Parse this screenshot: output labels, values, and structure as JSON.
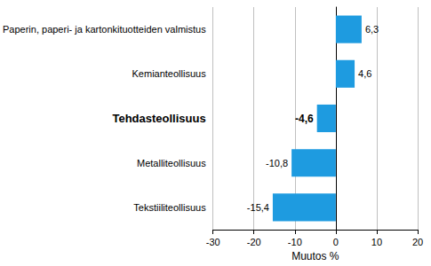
{
  "chart_data": {
    "type": "bar",
    "orientation": "horizontal",
    "categories": [
      "Paperin, paperi- ja kartonkituotteiden valmistus",
      "Kemianteollisuus",
      "Tehdasteollisuus",
      "Metalliteollisuus",
      "Tekstiiliteollisuus"
    ],
    "values": [
      6.3,
      4.6,
      -4.6,
      -10.8,
      -15.4
    ],
    "value_labels": [
      "6,3",
      "4,6",
      "-4,6",
      "-10,8",
      "-15,4"
    ],
    "data_labels": true,
    "color": "#1e9be0",
    "xlabel": "Muutos %",
    "xlim": [
      -30,
      20
    ],
    "xticks": [
      -30,
      -20,
      -10,
      0,
      10,
      20
    ],
    "grid": true
  }
}
